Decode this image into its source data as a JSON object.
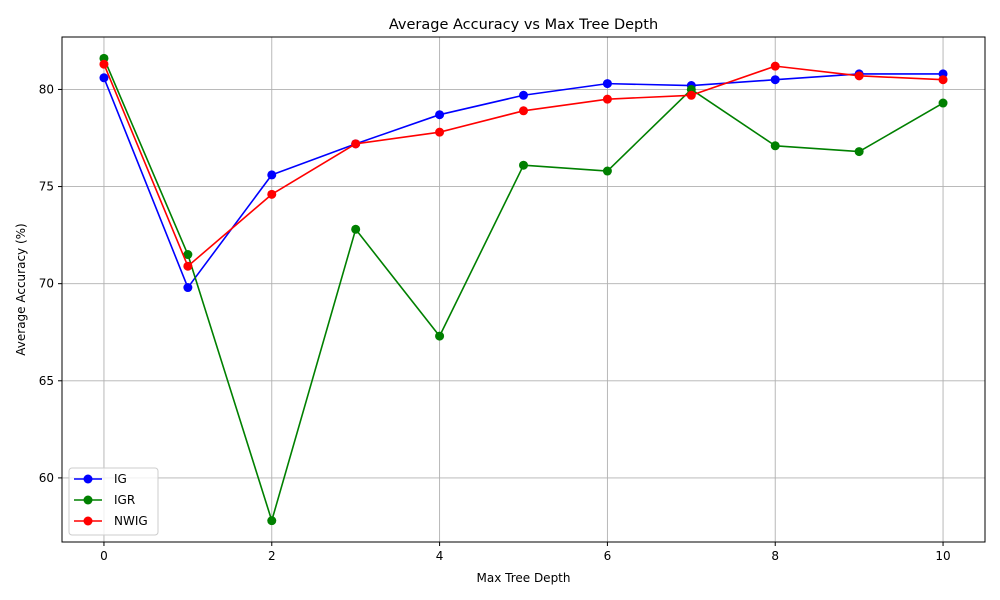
{
  "chart_data": {
    "type": "line",
    "title": "Average Accuracy vs Max Tree Depth",
    "xlabel": "Max Tree Depth",
    "ylabel": "Average Accuracy (%)",
    "x": [
      0,
      1,
      2,
      3,
      4,
      5,
      6,
      7,
      8,
      9,
      10
    ],
    "xlim": [
      -0.5,
      10.5
    ],
    "ylim": [
      56.7,
      82.7
    ],
    "xticks": [
      "0",
      "2",
      "4",
      "6",
      "8",
      "10"
    ],
    "yticks": [
      "60",
      "65",
      "70",
      "75",
      "80"
    ],
    "grid": true,
    "legend_position": "lower-left",
    "series": [
      {
        "name": "IG",
        "color": "#0000ff",
        "values": [
          80.6,
          69.8,
          75.6,
          77.2,
          78.7,
          79.7,
          80.3,
          80.2,
          80.5,
          80.8,
          80.8
        ]
      },
      {
        "name": "IGR",
        "color": "#008000",
        "values": [
          81.6,
          71.5,
          57.8,
          72.8,
          67.3,
          76.1,
          75.8,
          80.0,
          77.1,
          76.8,
          79.3
        ]
      },
      {
        "name": "NWIG",
        "color": "#ff0000",
        "values": [
          81.3,
          70.9,
          74.6,
          77.2,
          77.8,
          78.9,
          79.5,
          79.7,
          81.2,
          80.7,
          80.5
        ]
      }
    ]
  }
}
